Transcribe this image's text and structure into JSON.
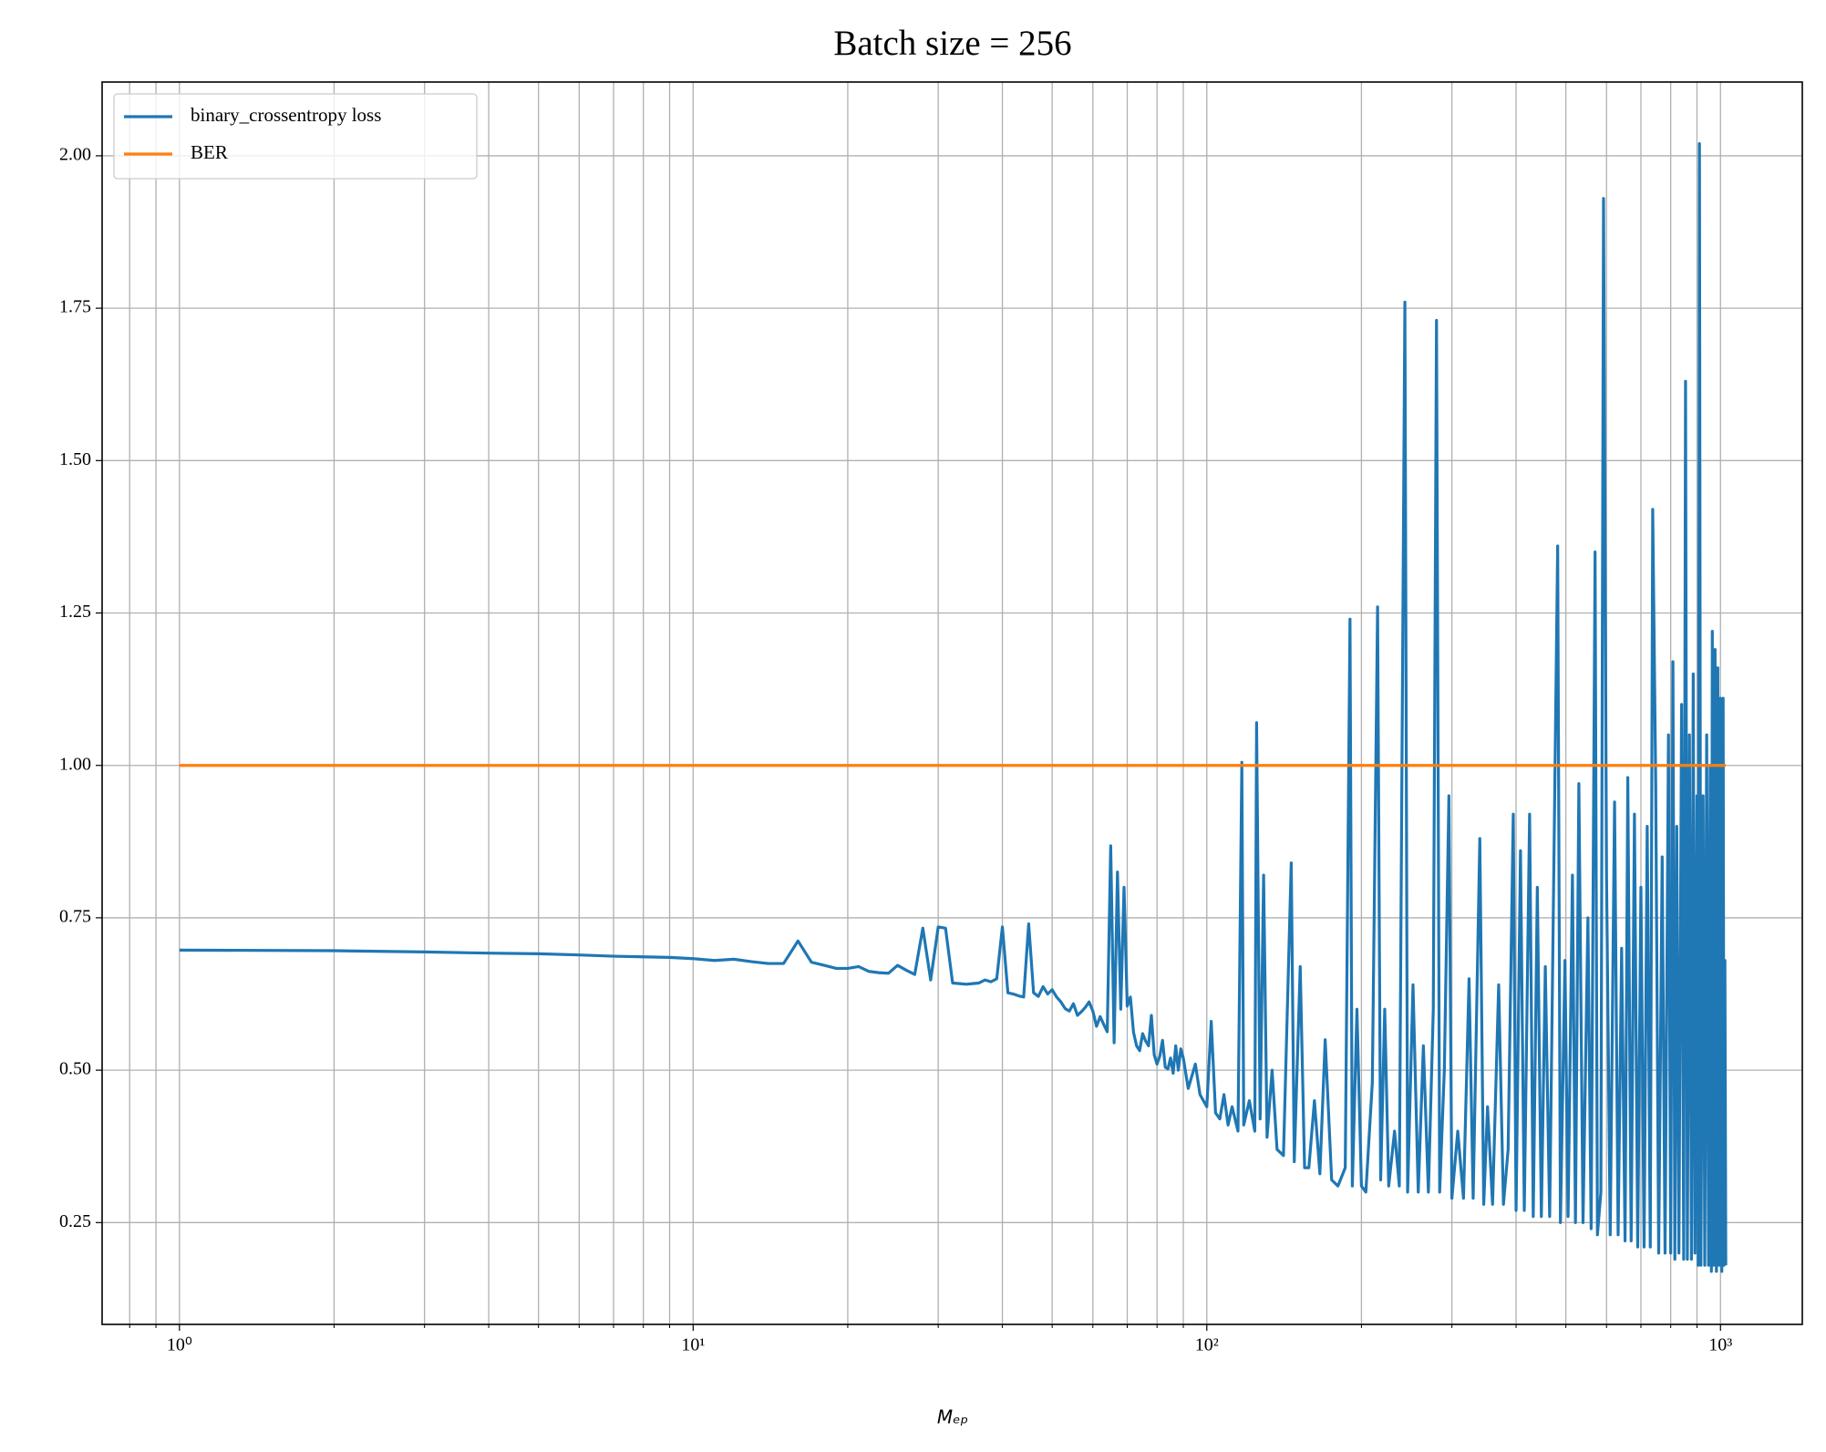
{
  "chart_data": {
    "type": "line",
    "title": "Batch size = 256",
    "xlabel": "Mₑₚ",
    "log_x": true,
    "grid": true,
    "legend": "upper left",
    "xlim": [
      0.707,
      1443
    ],
    "ylim": [
      0.083,
      2.121
    ],
    "xticks": [
      {
        "value": 1,
        "label": "10⁰"
      },
      {
        "value": 10,
        "label": "10¹"
      },
      {
        "value": 100,
        "label": "10²"
      },
      {
        "value": 1000,
        "label": "10³"
      }
    ],
    "xminorticks": [
      0.8,
      0.9,
      2,
      3,
      4,
      5,
      6,
      7,
      8,
      9,
      20,
      30,
      40,
      50,
      60,
      70,
      80,
      90,
      200,
      300,
      400,
      500,
      600,
      700,
      800,
      900
    ],
    "yticks": [
      0.25,
      {
        "value": 0.5,
        "label": "0.50"
      },
      0.75,
      {
        "value": 1,
        "label": "1.00"
      },
      1.25,
      {
        "value": 1.5,
        "label": "1.50"
      },
      1.75,
      {
        "value": 2,
        "label": "2.00"
      }
    ],
    "series": [
      {
        "name": "binary_crossentropy loss",
        "color": "#1f77b4",
        "x": [
          1,
          2,
          3,
          4,
          5,
          6,
          7,
          8,
          9,
          10,
          11,
          12,
          13,
          14,
          15,
          16,
          17,
          18,
          19,
          20,
          21,
          22,
          23,
          24,
          25,
          26,
          27,
          28,
          29,
          30,
          31,
          32,
          33,
          34,
          35,
          36,
          37,
          38,
          39,
          40,
          41,
          42,
          43,
          44,
          45,
          46,
          47,
          48,
          49,
          50,
          51,
          52,
          53,
          54,
          55,
          56,
          57,
          58,
          59,
          60,
          61,
          62,
          63,
          64,
          65,
          66,
          67,
          68,
          69,
          70,
          71,
          72,
          73,
          74,
          75,
          76,
          77,
          78,
          79,
          80,
          81,
          82,
          83,
          84,
          85,
          86,
          87,
          88,
          89,
          90,
          92,
          95,
          97,
          100,
          102,
          104,
          106,
          108,
          110,
          112,
          115,
          117,
          118,
          121,
          124,
          125,
          127,
          129,
          131,
          134,
          137,
          141,
          146,
          148,
          152,
          155,
          158,
          162,
          166,
          170,
          175,
          180,
          186,
          190,
          192,
          196,
          200,
          204,
          210,
          215,
          218,
          222,
          226,
          232,
          237,
          243,
          246,
          252,
          258,
          264,
          270,
          276,
          280,
          284,
          290,
          296,
          300,
          308,
          316,
          324,
          330,
          340,
          346,
          352,
          360,
          370,
          378,
          386,
          395,
          400,
          408,
          415,
          425,
          432,
          440,
          448,
          456,
          465,
          475,
          482,
          488,
          498,
          505,
          515,
          522,
          530,
          540,
          552,
          560,
          570,
          576,
          585,
          592,
          600,
          610,
          622,
          632,
          642,
          652,
          660,
          670,
          680,
          690,
          700,
          710,
          720,
          730,
          738,
          748,
          758,
          770,
          780,
          792,
          800,
          808,
          815,
          822,
          830,
          840,
          848,
          855,
          862,
          870,
          878,
          885,
          892,
          900,
          905,
          910,
          916,
          925,
          932,
          940,
          948,
          955,
          960,
          964,
          970,
          976,
          982,
          988,
          994,
          1000,
          1006,
          1012,
          1016,
          1020,
          1024
        ],
        "values": [
          0.697,
          0.696,
          0.694,
          0.692,
          0.691,
          0.689,
          0.687,
          0.686,
          0.685,
          0.683,
          0.68,
          0.682,
          0.678,
          0.675,
          0.675,
          0.712,
          0.677,
          0.672,
          0.667,
          0.667,
          0.67,
          0.662,
          0.66,
          0.659,
          0.672,
          0.664,
          0.657,
          0.733,
          0.648,
          0.735,
          0.733,
          0.643,
          0.642,
          0.641,
          0.642,
          0.643,
          0.648,
          0.645,
          0.65,
          0.735,
          0.627,
          0.625,
          0.622,
          0.62,
          0.74,
          0.627,
          0.621,
          0.637,
          0.625,
          0.632,
          0.62,
          0.612,
          0.601,
          0.597,
          0.609,
          0.59,
          0.596,
          0.603,
          0.612,
          0.597,
          0.572,
          0.588,
          0.575,
          0.563,
          0.868,
          0.545,
          0.825,
          0.6,
          0.8,
          0.605,
          0.62,
          0.562,
          0.54,
          0.532,
          0.56,
          0.548,
          0.54,
          0.59,
          0.525,
          0.51,
          0.523,
          0.549,
          0.505,
          0.502,
          0.52,
          0.495,
          0.54,
          0.5,
          0.535,
          0.52,
          0.47,
          0.51,
          0.46,
          0.44,
          0.58,
          0.43,
          0.42,
          0.46,
          0.41,
          0.44,
          0.4,
          1.005,
          0.41,
          0.45,
          0.4,
          1.07,
          0.42,
          0.82,
          0.39,
          0.5,
          0.37,
          0.36,
          0.84,
          0.35,
          0.67,
          0.34,
          0.34,
          0.45,
          0.33,
          0.55,
          0.32,
          0.31,
          0.34,
          1.24,
          0.31,
          0.6,
          0.31,
          0.3,
          0.48,
          1.26,
          0.32,
          0.6,
          0.31,
          0.4,
          0.31,
          1.76,
          0.3,
          0.64,
          0.3,
          0.54,
          0.3,
          0.6,
          1.73,
          0.3,
          0.5,
          0.95,
          0.29,
          0.4,
          0.29,
          0.65,
          0.29,
          0.88,
          0.28,
          0.44,
          0.28,
          0.64,
          0.28,
          0.37,
          0.92,
          0.27,
          0.86,
          0.27,
          0.92,
          0.26,
          0.8,
          0.26,
          0.67,
          0.26,
          0.91,
          1.36,
          0.25,
          0.68,
          0.26,
          0.82,
          0.25,
          0.97,
          0.25,
          0.75,
          0.24,
          1.35,
          0.23,
          0.3,
          1.93,
          0.82,
          0.23,
          0.94,
          0.23,
          0.7,
          0.22,
          0.98,
          0.22,
          0.92,
          0.21,
          0.8,
          0.21,
          0.9,
          0.21,
          1.42,
          0.97,
          0.2,
          0.85,
          0.2,
          1.05,
          0.2,
          1.17,
          0.19,
          0.9,
          0.2,
          1.1,
          0.19,
          1.63,
          0.19,
          1.05,
          0.19,
          1.15,
          0.2,
          0.95,
          0.18,
          2.02,
          0.18,
          0.95,
          0.18,
          1.05,
          0.18,
          1.0,
          0.17,
          1.22,
          0.18,
          1.19,
          0.17,
          1.16,
          0.18,
          1.11,
          0.17,
          1.11,
          0.18,
          0.68,
          0.18
        ]
      },
      {
        "name": "BER",
        "color": "#ff7f0e",
        "x": [
          1,
          1024
        ],
        "values": [
          1,
          1
        ]
      }
    ]
  }
}
